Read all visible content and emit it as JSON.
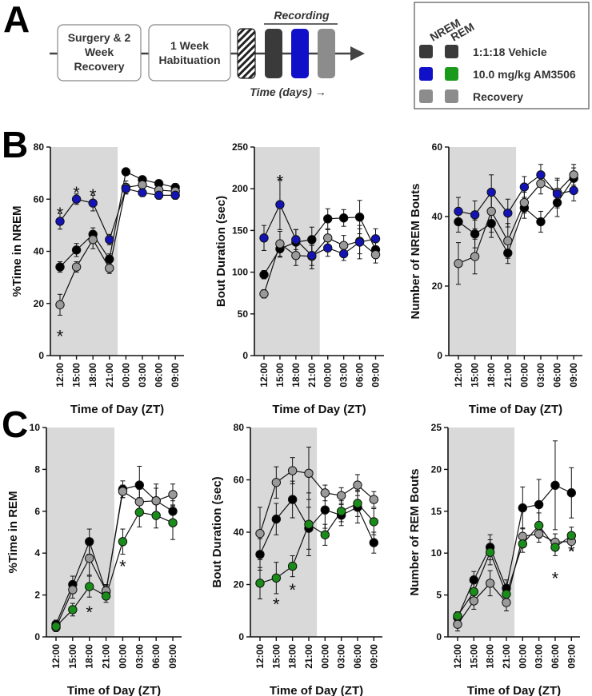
{
  "panel_a": {
    "letter": "A",
    "box_surgery": [
      "Surgery & 2",
      "Week",
      "Recovery"
    ],
    "box_habituation": [
      "1 Week",
      "Habituation"
    ],
    "recording_label": "Recording",
    "time_label": "Time (days) →"
  },
  "legend": {
    "nrem_header": "NREM",
    "rem_header": "REM",
    "entries": [
      {
        "label": "1:1:18 Vehicle",
        "nrem_color": "#3a3a3a",
        "rem_color": "#3a3a3a"
      },
      {
        "label": "10.0 mg/kg AM3506",
        "nrem_color": "#1010c8",
        "rem_color": "#1a9a1a"
      },
      {
        "label": "Recovery",
        "nrem_color": "#8c8c8c",
        "rem_color": "#8c8c8c"
      }
    ],
    "nrem_header_color": "#1515c8",
    "rem_header_color": "#138a13"
  },
  "panel_b_letter": "B",
  "panel_c_letter": "C",
  "chart_data": [
    {
      "id": "b1",
      "type": "line",
      "panel": "B",
      "xlabel": "Time of Day (ZT)",
      "ylabel": "%Time in NREM",
      "categories": [
        "12:00",
        "15:00",
        "18:00",
        "21:00",
        "00:00",
        "03:00",
        "06:00",
        "09:00"
      ],
      "ylim": [
        0,
        80
      ],
      "yticks": [
        0,
        20,
        40,
        60,
        80
      ],
      "shaded_categories": [
        "12:00",
        "15:00",
        "18:00",
        "21:00"
      ],
      "series": [
        {
          "name": "1:1:18 Vehicle",
          "color": "#000000",
          "values": [
            34,
            40.5,
            46.5,
            37,
            70.5,
            67.5,
            66,
            64.5
          ],
          "errors": [
            2,
            2.5,
            2.5,
            2,
            1,
            1,
            1,
            1.5
          ]
        },
        {
          "name": "10.0 mg/kg AM3506",
          "color": "#1414b4",
          "values": [
            51.5,
            60,
            58.5,
            44.5,
            64,
            62.5,
            61.5,
            61.5
          ],
          "errors": [
            3,
            2,
            3,
            2,
            2,
            1.5,
            1.5,
            1.5
          ]
        },
        {
          "name": "Recovery",
          "color": "#9a9a9a",
          "values": [
            19.5,
            34,
            44.5,
            33.5,
            64.5,
            65.5,
            63.5,
            63
          ],
          "errors": [
            4,
            2,
            3.5,
            2,
            2.5,
            1.5,
            1.5,
            1.5
          ]
        }
      ],
      "annotations": [
        {
          "text": "*",
          "at": "12:00",
          "y": 55.5
        },
        {
          "text": "*",
          "at": "15:00",
          "y": 63.5
        },
        {
          "text": "*",
          "at": "18:00",
          "y": 62.5
        },
        {
          "text": "*",
          "at": "12:00",
          "y": 8.5
        }
      ]
    },
    {
      "id": "b2",
      "type": "line",
      "panel": "B",
      "xlabel": "Time of Day (ZT)",
      "ylabel": "Bout Duration (sec)",
      "categories": [
        "12:00",
        "15:00",
        "18:00",
        "21:00",
        "00:00",
        "03:00",
        "06:00",
        "09:00"
      ],
      "ylim": [
        0,
        250
      ],
      "yticks": [
        0,
        50,
        100,
        150,
        200,
        250
      ],
      "shaded_categories": [
        "12:00",
        "15:00",
        "18:00",
        "21:00"
      ],
      "series": [
        {
          "name": "1:1:18 Vehicle",
          "color": "#000000",
          "values": [
            97,
            128,
            136,
            139,
            164,
            165,
            166,
            127
          ],
          "errors": [
            5,
            10,
            15,
            15,
            12,
            10,
            20,
            10
          ]
        },
        {
          "name": "10.0 mg/kg AM3506",
          "color": "#1414b4",
          "values": [
            141,
            181,
            139,
            120,
            129,
            122,
            136,
            140
          ],
          "errors": [
            15,
            30,
            12,
            12,
            10,
            8,
            20,
            12
          ]
        },
        {
          "name": "Recovery",
          "color": "#9a9a9a",
          "values": [
            74,
            134,
            120,
            119,
            141,
            132,
            137,
            121
          ],
          "errors": [
            5,
            15,
            12,
            15,
            10,
            12,
            15,
            10
          ]
        }
      ],
      "annotations": [
        {
          "text": "*",
          "at": "15:00",
          "y": 212
        }
      ]
    },
    {
      "id": "b3",
      "type": "line",
      "panel": "B",
      "xlabel": "Time of Day (ZT)",
      "ylabel": "Number of NREM Bouts",
      "categories": [
        "12:00",
        "15:00",
        "18:00",
        "21:00",
        "00:00",
        "03:00",
        "06:00",
        "09:00"
      ],
      "ylim": [
        0,
        60
      ],
      "yticks": [
        0,
        20,
        40,
        60
      ],
      "shaded_categories": [
        "12:00",
        "15:00",
        "18:00",
        "21:00"
      ],
      "series": [
        {
          "name": "1:1:18 Vehicle",
          "color": "#000000",
          "values": [
            38.5,
            35,
            38,
            29.5,
            42.5,
            38.5,
            44,
            51
          ],
          "errors": [
            3,
            4,
            4,
            3,
            3,
            3,
            4,
            3
          ]
        },
        {
          "name": "10.0 mg/kg AM3506",
          "color": "#1414b4",
          "values": [
            41.5,
            40.5,
            47,
            41,
            48.5,
            52,
            46.5,
            47.5
          ],
          "errors": [
            4,
            4,
            5,
            4,
            3,
            3,
            4,
            3
          ]
        },
        {
          "name": "Recovery",
          "color": "#9a9a9a",
          "values": [
            26.5,
            28.5,
            41.5,
            33,
            44,
            49.5,
            47,
            52
          ],
          "errors": [
            6,
            5,
            6,
            5,
            3,
            3,
            4,
            3
          ]
        }
      ],
      "annotations": []
    },
    {
      "id": "c1",
      "type": "line",
      "panel": "C",
      "xlabel": "Time of Day (ZT)",
      "ylabel": "%Time in REM",
      "categories": [
        "12:00",
        "15:00",
        "18:00",
        "21:00",
        "00:00",
        "03:00",
        "06:00",
        "09:00"
      ],
      "ylim": [
        0,
        10
      ],
      "yticks": [
        0,
        2,
        4,
        6,
        8,
        10
      ],
      "shaded_categories": [
        "12:00",
        "15:00",
        "18:00",
        "21:00"
      ],
      "series": [
        {
          "name": "1:1:18 Vehicle",
          "color": "#000000",
          "values": [
            0.6,
            2.5,
            4.55,
            2.15,
            7.05,
            7.25,
            6.5,
            6.0
          ],
          "errors": [
            0.2,
            0.4,
            0.6,
            0.3,
            0.4,
            0.9,
            0.8,
            0.5
          ]
        },
        {
          "name": "10.0 mg/kg AM3506",
          "color": "#1a8c1a",
          "values": [
            0.5,
            1.3,
            2.4,
            1.95,
            4.55,
            5.95,
            5.8,
            5.45
          ],
          "errors": [
            0.2,
            0.3,
            0.5,
            0.3,
            0.6,
            0.7,
            0.6,
            0.8
          ]
        },
        {
          "name": "Recovery",
          "color": "#9a9a9a",
          "values": [
            0.45,
            2.25,
            3.75,
            2.2,
            6.95,
            6.45,
            6.5,
            6.8
          ],
          "errors": [
            0.2,
            0.4,
            0.8,
            0.3,
            0.3,
            0.6,
            0.6,
            0.5
          ]
        }
      ],
      "annotations": [
        {
          "text": "*",
          "at": "18:00",
          "y": 1.3
        },
        {
          "text": "*",
          "at": "00:00",
          "y": 3.5
        }
      ]
    },
    {
      "id": "c2",
      "type": "line",
      "panel": "C",
      "xlabel": "Time of Day (ZT)",
      "ylabel": "Bout Duration (sec)",
      "categories": [
        "12:00",
        "15:00",
        "18:00",
        "21:00",
        "00:00",
        "03:00",
        "06:00",
        "09:00"
      ],
      "ylim": [
        0,
        80
      ],
      "yticks": [
        0,
        20,
        40,
        60,
        80
      ],
      "shaded_categories": [
        "12:00",
        "15:00",
        "18:00",
        "21:00"
      ],
      "series": [
        {
          "name": "1:1:18 Vehicle",
          "color": "#000000",
          "values": [
            31.5,
            45,
            52.5,
            41.5,
            48.5,
            46.5,
            49.5,
            36
          ],
          "errors": [
            6,
            6,
            7,
            8,
            7,
            4,
            6,
            4
          ]
        },
        {
          "name": "10.0 mg/kg AM3506",
          "color": "#1a8c1a",
          "values": [
            20.5,
            22.5,
            27,
            43,
            39,
            48,
            51,
            44
          ],
          "errors": [
            6,
            6,
            4,
            12,
            4,
            4,
            5,
            5
          ]
        },
        {
          "name": "Recovery",
          "color": "#9a9a9a",
          "values": [
            39.5,
            59,
            63.5,
            62.5,
            55,
            54,
            58,
            52.5
          ],
          "errors": [
            10,
            6,
            5,
            10,
            3,
            3,
            4,
            3
          ]
        }
      ],
      "annotations": [
        {
          "text": "*",
          "at": "15:00",
          "y": 13.5
        },
        {
          "text": "*",
          "at": "18:00",
          "y": 19
        }
      ]
    },
    {
      "id": "c3",
      "type": "line",
      "panel": "C",
      "xlabel": "Time of Day (ZT)",
      "ylabel": "Number of REM Bouts",
      "categories": [
        "12:00",
        "15:00",
        "18:00",
        "21:00",
        "00:00",
        "03:00",
        "06:00",
        "09:00"
      ],
      "ylim": [
        0,
        25
      ],
      "yticks": [
        0,
        5,
        10,
        15,
        20,
        25
      ],
      "shaded_categories": [
        "12:00",
        "15:00",
        "18:00",
        "21:00"
      ],
      "series": [
        {
          "name": "1:1:18 Vehicle",
          "color": "#000000",
          "values": [
            2.3,
            6.8,
            10.7,
            5.8,
            15.4,
            15.8,
            18.1,
            17.2
          ],
          "errors": [
            0.5,
            1,
            1.5,
            1,
            2.5,
            3,
            5.3,
            3
          ]
        },
        {
          "name": "10.0 mg/kg AM3506",
          "color": "#1a8c1a",
          "values": [
            2.5,
            5.4,
            10.1,
            5.1,
            11.1,
            13.3,
            10.7,
            12.1
          ],
          "errors": [
            0.5,
            1,
            1.5,
            1,
            1,
            1.5,
            1,
            1
          ]
        },
        {
          "name": "Recovery",
          "color": "#9a9a9a",
          "values": [
            1.5,
            4.3,
            6.4,
            4.1,
            12.0,
            12.3,
            11.3,
            11.4
          ],
          "errors": [
            0.8,
            1,
            1.5,
            1,
            1,
            1,
            1,
            1
          ]
        }
      ],
      "annotations": [
        {
          "text": "*",
          "at": "06:00",
          "y": 7.3
        },
        {
          "text": "*",
          "at": "09:00",
          "y": 10.5
        }
      ]
    }
  ]
}
